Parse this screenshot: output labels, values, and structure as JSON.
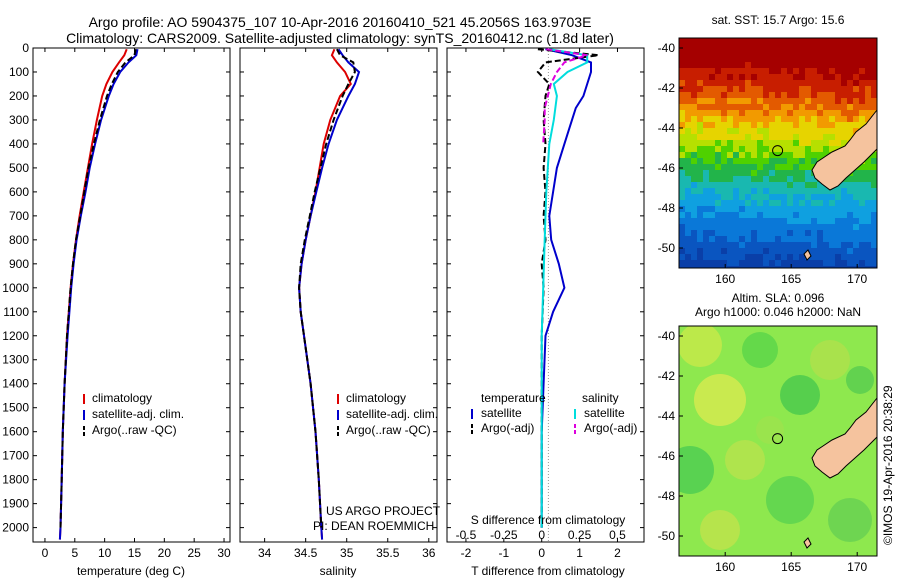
{
  "header": {
    "title_line1": "Argo profile: AO 5904375_107 10-Apr-2016 20160410_521 45.2056S 163.9703E",
    "title_line2": "Climatology: CARS2009. Satellite-adjusted climatology: synTS_20160412.nc (1.8d later)"
  },
  "credits": {
    "project": "US ARGO PROJECT",
    "pi": "PI: DEAN ROEMMICH",
    "imos": "©IMOS 19-Apr-2016 20:38:29"
  },
  "colors": {
    "climatology": "#dd0000",
    "satellite": "#0000cc",
    "argo": "#000000",
    "sal_satellite": "#00dddd",
    "sal_argo": "#dd00dd",
    "land": "#f5c39e"
  },
  "chart_data": [
    {
      "type": "line",
      "id": "temperature",
      "xlabel": "temperature (deg C)",
      "ylabel": "",
      "xlim": [
        -2,
        31
      ],
      "ylim": [
        2060,
        0
      ],
      "x_ticks": [
        0,
        5,
        10,
        15,
        20,
        25,
        30
      ],
      "y_ticks": [
        0,
        100,
        200,
        300,
        400,
        500,
        600,
        700,
        800,
        900,
        1000,
        1100,
        1200,
        1300,
        1400,
        1500,
        1600,
        1700,
        1800,
        1900,
        2000
      ],
      "legend": {
        "location": "bottom-center",
        "entries": [
          "climatology",
          "satellite-adj. clim.",
          "Argo(..raw -QC)"
        ]
      },
      "series": [
        {
          "name": "climatology",
          "color": "#dd0000",
          "style": "solid",
          "depth": [
            5,
            30,
            60,
            100,
            150,
            200,
            300,
            400,
            500,
            600,
            700,
            800,
            900,
            1000,
            1200,
            1400,
            1600,
            1800,
            2000,
            2050
          ],
          "values": [
            13.7,
            13.3,
            12.4,
            11.3,
            10.3,
            9.6,
            8.7,
            7.9,
            7.2,
            6.5,
            5.8,
            5.2,
            4.7,
            4.3,
            3.7,
            3.3,
            3.0,
            2.8,
            2.6,
            2.5
          ]
        },
        {
          "name": "satellite-adj. clim.",
          "color": "#0000cc",
          "style": "solid",
          "depth": [
            5,
            30,
            60,
            100,
            150,
            200,
            300,
            400,
            500,
            600,
            700,
            800,
            900,
            1000,
            1200,
            1400,
            1600,
            1800,
            2000,
            2050
          ],
          "values": [
            15.5,
            15.3,
            14.0,
            12.6,
            11.5,
            10.7,
            9.4,
            8.4,
            7.5,
            6.8,
            6.0,
            5.3,
            4.8,
            4.4,
            3.8,
            3.3,
            3.0,
            2.8,
            2.6,
            2.5
          ]
        },
        {
          "name": "Argo(..raw -QC)",
          "color": "#000000",
          "style": "dashed",
          "depth": [
            5,
            30,
            60,
            100,
            150,
            200,
            300,
            400,
            500,
            600,
            700,
            800,
            900,
            1000,
            1200,
            1400,
            1600,
            1800,
            2000
          ],
          "values": [
            15.2,
            15.0,
            13.5,
            12.2,
            11.2,
            10.4,
            9.2,
            8.2,
            7.3,
            6.6,
            5.9,
            5.2,
            4.7,
            4.3,
            3.7,
            3.3,
            3.0,
            2.8,
            2.6
          ]
        }
      ]
    },
    {
      "type": "line",
      "id": "salinity",
      "xlabel": "salinity",
      "xlim": [
        33.7,
        36.1
      ],
      "ylim": [
        2060,
        0
      ],
      "x_ticks": [
        34,
        34.5,
        35,
        35.5,
        36
      ],
      "legend": {
        "location": "bottom-center",
        "entries": [
          "climatology",
          "satellite-adj. clim.",
          "Argo(..raw -QC)"
        ]
      },
      "series": [
        {
          "name": "climatology",
          "color": "#dd0000",
          "style": "solid",
          "depth": [
            5,
            30,
            60,
            100,
            150,
            200,
            300,
            400,
            500,
            600,
            700,
            800,
            900,
            1000,
            1100,
            1200,
            1400,
            1600,
            1800,
            2000,
            2050
          ],
          "values": [
            34.85,
            34.82,
            34.88,
            34.98,
            35.05,
            34.92,
            34.8,
            34.72,
            34.67,
            34.62,
            34.56,
            34.5,
            34.45,
            34.42,
            34.44,
            34.48,
            34.56,
            34.62,
            34.66,
            34.69,
            34.7
          ]
        },
        {
          "name": "satellite-adj. clim.",
          "color": "#0000cc",
          "style": "solid",
          "depth": [
            5,
            30,
            60,
            100,
            150,
            200,
            300,
            400,
            500,
            600,
            700,
            800,
            900,
            1000,
            1100,
            1200,
            1400,
            1600,
            1800,
            2000,
            2050
          ],
          "values": [
            34.9,
            34.95,
            35.02,
            35.15,
            35.1,
            35.02,
            34.88,
            34.78,
            34.7,
            34.63,
            34.56,
            34.5,
            34.45,
            34.42,
            34.44,
            34.48,
            34.56,
            34.62,
            34.66,
            34.69,
            34.7
          ]
        },
        {
          "name": "Argo(..raw -QC)",
          "color": "#000000",
          "style": "dashed",
          "depth": [
            5,
            30,
            60,
            100,
            150,
            200,
            300,
            400,
            500,
            600,
            700,
            800,
            900,
            1000,
            1100,
            1200,
            1400,
            1600,
            1800,
            2000
          ],
          "values": [
            34.88,
            34.92,
            35.08,
            35.1,
            35.02,
            34.95,
            34.84,
            34.75,
            34.68,
            34.61,
            34.55,
            34.49,
            34.44,
            34.42,
            34.44,
            34.48,
            34.56,
            34.62,
            34.66,
            34.69
          ]
        }
      ]
    },
    {
      "type": "line",
      "id": "differences",
      "xlabel": "T difference from climatology",
      "xlabel_top": "S difference from climatology",
      "xlim": [
        -2.5,
        2.7
      ],
      "ylim": [
        2060,
        0
      ],
      "x_ticks": [
        -2,
        -1,
        0,
        1,
        2
      ],
      "x_ticks_s": [
        -0.5,
        -0.25,
        0,
        0.25,
        0.5
      ],
      "legend": {
        "location": "bottom",
        "temperature_title": "temperature",
        "salinity_title": "salinity",
        "entries": [
          "satellite",
          "Argo(-adj)",
          "satellite",
          "Argo(-adj)"
        ]
      },
      "series": [
        {
          "name": "temperature satellite",
          "color": "#0000cc",
          "style": "solid",
          "units": "T",
          "depth": [
            5,
            30,
            60,
            100,
            150,
            200,
            250,
            300,
            400,
            500,
            600,
            700,
            800,
            900,
            1000,
            1100,
            1200,
            1400,
            1600,
            1800,
            2000
          ],
          "values": [
            0.1,
            0.8,
            1.3,
            1.3,
            1.2,
            1.1,
            0.9,
            0.8,
            0.6,
            0.4,
            0.3,
            0.2,
            0.25,
            0.45,
            0.6,
            0.3,
            0.1,
            0.05,
            0.0,
            0.0,
            0.0
          ]
        },
        {
          "name": "temperature Argo(-adj)",
          "color": "#000000",
          "style": "dashed",
          "units": "T",
          "depth": [
            5,
            30,
            60,
            100,
            150,
            200,
            300,
            400,
            500,
            600,
            700,
            800,
            900,
            1000,
            1200,
            1400,
            1600,
            1800,
            2000
          ],
          "values": [
            -0.1,
            1.5,
            0.1,
            -0.1,
            0.2,
            0.1,
            0.05,
            0.1,
            0.05,
            0.1,
            0.05,
            0.1,
            0.0,
            0.05,
            0.0,
            0.0,
            0.0,
            0.0,
            0.0
          ]
        },
        {
          "name": "salinity satellite",
          "color": "#00dddd",
          "style": "solid",
          "units": "S",
          "depth": [
            5,
            30,
            60,
            100,
            150,
            200,
            300,
            400,
            500,
            600,
            800,
            1000,
            1200,
            1400,
            1600,
            1800,
            2000
          ],
          "values": [
            0.05,
            0.3,
            0.3,
            0.17,
            0.08,
            0.1,
            0.08,
            0.05,
            0.04,
            0.03,
            0.02,
            0.01,
            0.0,
            0.0,
            0.0,
            0.0,
            0.0
          ]
        },
        {
          "name": "salinity Argo(-adj)",
          "color": "#dd00dd",
          "style": "dashed",
          "units": "S",
          "depth": [
            5,
            30,
            60,
            100,
            150,
            200,
            250,
            300,
            400
          ],
          "values": [
            0.03,
            0.3,
            0.15,
            0.1,
            0.06,
            0.04,
            0.02,
            0.02,
            0.01
          ]
        }
      ]
    },
    {
      "type": "heatmap",
      "id": "sst_map",
      "title": "sat. SST: 15.7  Argo: 15.6",
      "xlim": [
        156.5,
        171.5
      ],
      "ylim": [
        -51,
        -39.5
      ],
      "x_ticks": [
        160,
        165,
        170
      ],
      "y_ticks": [
        -40,
        -42,
        -44,
        -46,
        -48,
        -50
      ],
      "argo_position": {
        "lon": 163.97,
        "lat": -45.21
      }
    },
    {
      "type": "heatmap",
      "id": "sla_map",
      "title": "Altim. SLA: 0.096",
      "title_line2": "Argo h1000: 0.046  h2000: NaN",
      "xlim": [
        156.5,
        171.5
      ],
      "ylim": [
        -51,
        -39.5
      ],
      "x_ticks": [
        160,
        165,
        170
      ],
      "y_ticks": [
        -40,
        -42,
        -44,
        -46,
        -48,
        -50
      ],
      "argo_position": {
        "lon": 163.97,
        "lat": -45.21
      }
    }
  ]
}
